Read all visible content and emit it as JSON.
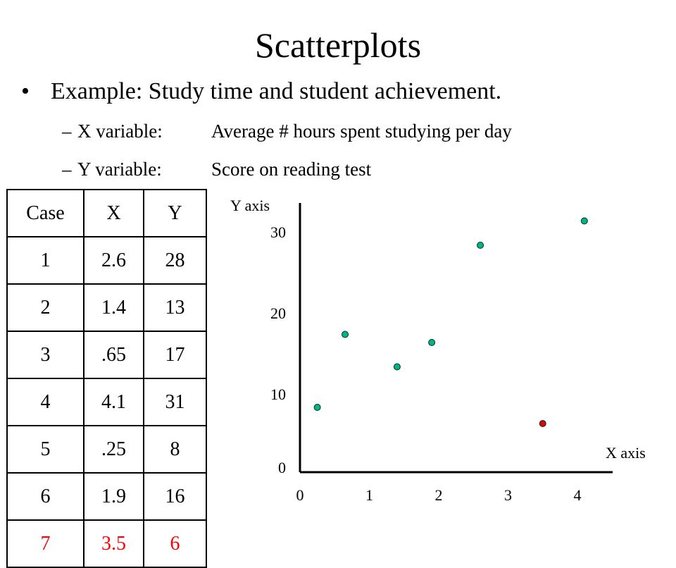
{
  "slide": {
    "title": "Scatterplots",
    "bullet": "Example:  Study time and student achievement.",
    "bullet_marker": "•",
    "sub_marker": "–",
    "sub_bullets": [
      {
        "label": "X variable:",
        "text": "Average # hours spent studying per day"
      },
      {
        "label": "Y variable:",
        "text": "Score on reading test"
      }
    ]
  },
  "table": {
    "headers": [
      "Case",
      "X",
      "Y"
    ],
    "rows": [
      [
        "1",
        "2.6",
        "28"
      ],
      [
        "2",
        "1.4",
        "13"
      ],
      [
        "3",
        ".65",
        "17"
      ],
      [
        "4",
        "4.1",
        "31"
      ],
      [
        "5",
        ".25",
        "8"
      ],
      [
        "6",
        "1.9",
        "16"
      ],
      [
        "7",
        "3.5",
        "6"
      ]
    ],
    "highlight_row": 6,
    "highlight_color": "#ff0000"
  },
  "chart_data": {
    "type": "scatter",
    "xlabel": "X axis",
    "ylabel": "Y axis",
    "xlim": [
      0,
      4.3
    ],
    "ylim": [
      0,
      32
    ],
    "x_ticks": [
      0,
      1,
      2,
      3,
      4
    ],
    "y_ticks": [
      0,
      10,
      20,
      30
    ],
    "grid": false,
    "points": [
      {
        "case": 1,
        "x": 2.6,
        "y": 28,
        "color": "#00b386"
      },
      {
        "case": 2,
        "x": 1.4,
        "y": 13,
        "color": "#00b386"
      },
      {
        "case": 3,
        "x": 0.65,
        "y": 17,
        "color": "#00b386"
      },
      {
        "case": 4,
        "x": 4.1,
        "y": 31,
        "color": "#00b386"
      },
      {
        "case": 5,
        "x": 0.25,
        "y": 8,
        "color": "#00b386"
      },
      {
        "case": 6,
        "x": 1.9,
        "y": 16,
        "color": "#00b386"
      },
      {
        "case": 7,
        "x": 3.5,
        "y": 6,
        "color": "#e00000"
      }
    ]
  }
}
